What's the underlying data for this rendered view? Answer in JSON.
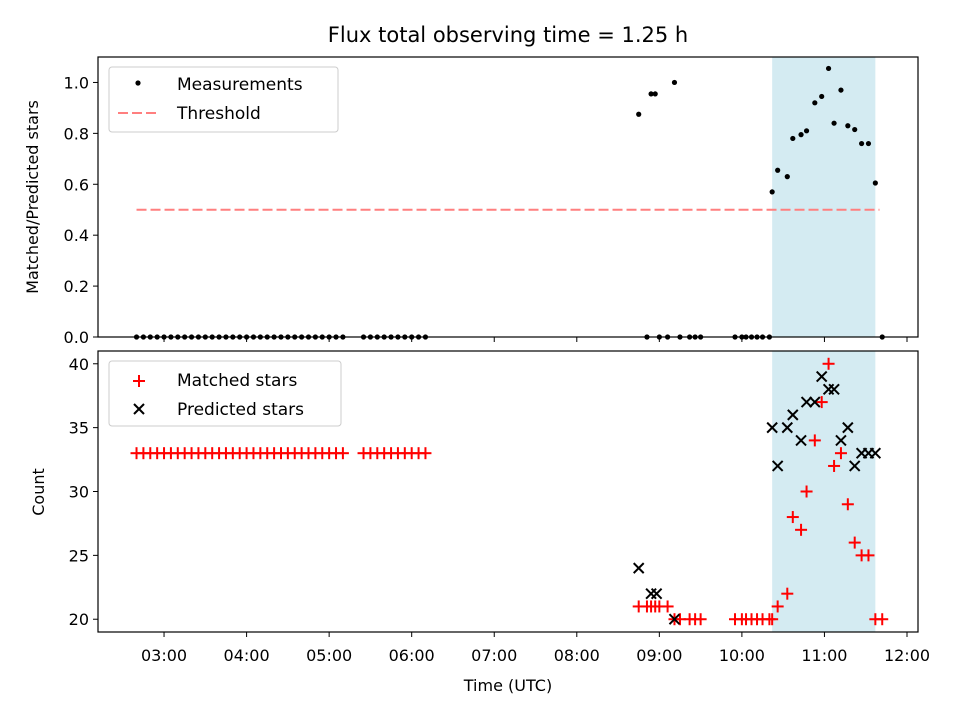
{
  "title": "Flux total observing time = 1.25 h",
  "highlight_color": "#add8e6",
  "chart_data": [
    {
      "type": "scatter",
      "ylabel": "Matched/Predicted stars",
      "ylim": [
        0,
        1.1
      ],
      "yticks": [
        0.0,
        0.2,
        0.4,
        0.6,
        0.8,
        1.0
      ],
      "ytick_labels": [
        "0.0",
        "0.2",
        "0.4",
        "0.6",
        "0.8",
        "1.0"
      ],
      "shaded_span": [
        "10:22",
        "11:37"
      ],
      "legend": {
        "placement": "upper-left",
        "entries": [
          {
            "label": "Measurements",
            "marker": "dot",
            "color": "#000000"
          },
          {
            "label": "Threshold",
            "marker": "dashed-line",
            "color": "#ff7f7f"
          }
        ]
      },
      "threshold": {
        "value": 0.5,
        "x_range": [
          "02:40",
          "11:40"
        ],
        "color": "#ff7f7f"
      },
      "measurements": {
        "x": [
          "02:40",
          "02:45",
          "02:50",
          "02:55",
          "03:00",
          "03:05",
          "03:10",
          "03:15",
          "03:20",
          "03:25",
          "03:30",
          "03:35",
          "03:40",
          "03:45",
          "03:50",
          "03:55",
          "04:00",
          "04:05",
          "04:10",
          "04:15",
          "04:20",
          "04:25",
          "04:30",
          "04:35",
          "04:40",
          "04:45",
          "04:50",
          "04:55",
          "05:00",
          "05:05",
          "05:10",
          "05:25",
          "05:30",
          "05:35",
          "05:40",
          "05:45",
          "05:50",
          "05:55",
          "06:00",
          "06:05",
          "06:10",
          "08:45",
          "08:51",
          "08:54",
          "08:57",
          "09:00",
          "09:06",
          "09:11",
          "09:15",
          "09:22",
          "09:26",
          "09:30",
          "09:55",
          "10:00",
          "10:03",
          "10:07",
          "10:11",
          "10:15",
          "10:20",
          "10:22",
          "10:26",
          "10:33",
          "10:37",
          "10:43",
          "10:47",
          "10:53",
          "10:58",
          "11:03",
          "11:07",
          "11:12",
          "11:17",
          "11:22",
          "11:27",
          "11:32",
          "11:37",
          "11:42"
        ],
        "y": [
          0,
          0,
          0,
          0,
          0,
          0,
          0,
          0,
          0,
          0,
          0,
          0,
          0,
          0,
          0,
          0,
          0,
          0,
          0,
          0,
          0,
          0,
          0,
          0,
          0,
          0,
          0,
          0,
          0,
          0,
          0,
          0,
          0,
          0,
          0,
          0,
          0,
          0,
          0,
          0,
          0,
          0.875,
          0,
          0.955,
          0.955,
          0,
          0,
          1.0,
          0,
          0,
          0,
          0,
          0,
          0,
          0,
          0,
          0,
          0,
          0,
          0.57,
          0.655,
          0.63,
          0.78,
          0.795,
          0.81,
          0.92,
          0.945,
          1.055,
          0.84,
          0.97,
          0.83,
          0.815,
          0.76,
          0.76,
          0.605,
          0
        ],
        "color": "#000000"
      }
    },
    {
      "type": "scatter",
      "ylabel": "Count",
      "xlabel": "Time (UTC)",
      "ylim": [
        19,
        41
      ],
      "yticks": [
        20,
        25,
        30,
        35,
        40
      ],
      "ytick_labels": [
        "20",
        "25",
        "30",
        "35",
        "40"
      ],
      "xlim": [
        "02:12",
        "12:08"
      ],
      "xticks": [
        "03:00",
        "04:00",
        "05:00",
        "06:00",
        "07:00",
        "08:00",
        "09:00",
        "10:00",
        "11:00",
        "12:00"
      ],
      "shaded_span": [
        "10:22",
        "11:37"
      ],
      "legend": {
        "placement": "upper-left",
        "entries": [
          {
            "label": "Matched stars",
            "marker": "plus",
            "color": "#ff0000"
          },
          {
            "label": "Predicted stars",
            "marker": "x",
            "color": "#000000"
          }
        ]
      },
      "matched_stars": {
        "x": [
          "02:40",
          "02:45",
          "02:50",
          "02:55",
          "03:00",
          "03:05",
          "03:10",
          "03:15",
          "03:20",
          "03:25",
          "03:30",
          "03:35",
          "03:40",
          "03:45",
          "03:50",
          "03:55",
          "04:00",
          "04:05",
          "04:10",
          "04:15",
          "04:20",
          "04:25",
          "04:30",
          "04:35",
          "04:40",
          "04:45",
          "04:50",
          "04:55",
          "05:00",
          "05:05",
          "05:10",
          "05:25",
          "05:30",
          "05:35",
          "05:40",
          "05:45",
          "05:50",
          "05:55",
          "06:00",
          "06:05",
          "06:10",
          "08:45",
          "08:51",
          "08:54",
          "08:57",
          "09:00",
          "09:06",
          "09:11",
          "09:15",
          "09:22",
          "09:26",
          "09:30",
          "09:55",
          "10:00",
          "10:03",
          "10:07",
          "10:11",
          "10:15",
          "10:20",
          "10:22",
          "10:26",
          "10:33",
          "10:37",
          "10:43",
          "10:47",
          "10:53",
          "10:58",
          "11:03",
          "11:07",
          "11:12",
          "11:17",
          "11:22",
          "11:27",
          "11:32",
          "11:37",
          "11:42"
        ],
        "y": [
          33,
          33,
          33,
          33,
          33,
          33,
          33,
          33,
          33,
          33,
          33,
          33,
          33,
          33,
          33,
          33,
          33,
          33,
          33,
          33,
          33,
          33,
          33,
          33,
          33,
          33,
          33,
          33,
          33,
          33,
          33,
          33,
          33,
          33,
          33,
          33,
          33,
          33,
          33,
          33,
          33,
          21,
          21,
          21,
          21,
          21,
          21,
          20,
          20,
          20,
          20,
          20,
          20,
          20,
          20,
          20,
          20,
          20,
          20,
          20,
          21,
          22,
          28,
          27,
          30,
          34,
          37,
          40,
          32,
          33,
          29,
          26,
          25,
          25,
          20,
          20
        ],
        "color": "#ff0000"
      },
      "predicted_stars": {
        "x": [
          "08:45",
          "08:54",
          "08:58",
          "09:11",
          "10:22",
          "10:26",
          "10:33",
          "10:37",
          "10:43",
          "10:47",
          "10:53",
          "10:58",
          "11:03",
          "11:07",
          "11:12",
          "11:17",
          "11:22",
          "11:27",
          "11:32",
          "11:37"
        ],
        "y": [
          24,
          22,
          22,
          20,
          35,
          32,
          35,
          36,
          34,
          37,
          37,
          39,
          38,
          38,
          34,
          35,
          32,
          33,
          33,
          33
        ],
        "color": "#000000"
      }
    }
  ]
}
